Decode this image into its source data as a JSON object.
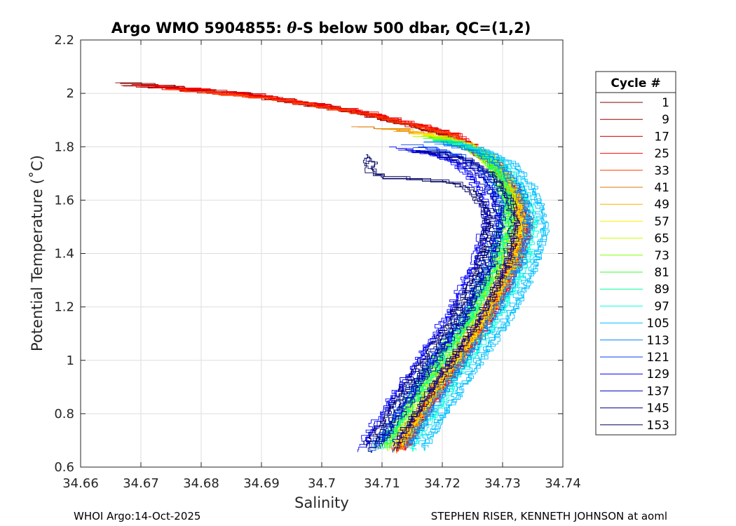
{
  "chart_data": {
    "type": "line",
    "title_prefix": "Argo WMO 5904855: ",
    "title_symbol": "θ",
    "title_suffix": "-S below 500 dbar,  QC=(1,2)",
    "xlabel": "Salinity",
    "ylabel": "Potential Temperature (˚C)",
    "xlim": [
      34.66,
      34.74
    ],
    "ylim": [
      0.6,
      2.2
    ],
    "xticks": [
      34.66,
      34.67,
      34.68,
      34.69,
      34.7,
      34.71,
      34.72,
      34.73,
      34.74
    ],
    "xtick_labels": [
      "34.66",
      "34.67",
      "34.68",
      "34.69",
      "34.7",
      "34.71",
      "34.72",
      "34.73",
      "34.74"
    ],
    "yticks": [
      0.6,
      0.8,
      1.0,
      1.2,
      1.4,
      1.6,
      1.8,
      2.0,
      2.2
    ],
    "ytick_labels": [
      "0.6",
      "0.8",
      "1",
      "1.2",
      "1.4",
      "1.6",
      "1.8",
      "2",
      "2.2"
    ],
    "grid": true,
    "legend_title": "Cycle #",
    "legend_position": "outside-right",
    "series": [
      {
        "name": "1",
        "color": "#800000",
        "profile": [
          [
            34.666,
            2.04
          ],
          [
            34.688,
            1.99
          ],
          [
            34.705,
            1.93
          ],
          [
            34.72,
            1.85
          ],
          [
            34.7285,
            1.74
          ],
          [
            34.7325,
            1.6
          ],
          [
            34.7335,
            1.5
          ],
          [
            34.7315,
            1.35
          ],
          [
            34.727,
            1.15
          ],
          [
            34.72,
            0.92
          ],
          [
            34.7125,
            0.66
          ]
        ]
      },
      {
        "name": "9",
        "color": "#A00000",
        "profile": [
          [
            34.666,
            2.03
          ],
          [
            34.688,
            1.985
          ],
          [
            34.705,
            1.925
          ],
          [
            34.72,
            1.845
          ],
          [
            34.7285,
            1.735
          ],
          [
            34.7325,
            1.595
          ],
          [
            34.7335,
            1.495
          ],
          [
            34.7315,
            1.345
          ],
          [
            34.727,
            1.145
          ],
          [
            34.72,
            0.915
          ],
          [
            34.7125,
            0.655
          ]
        ]
      },
      {
        "name": "17",
        "color": "#D00000",
        "profile": [
          [
            34.667,
            2.035
          ],
          [
            34.689,
            1.99
          ],
          [
            34.706,
            1.93
          ],
          [
            34.721,
            1.85
          ],
          [
            34.729,
            1.74
          ],
          [
            34.733,
            1.6
          ],
          [
            34.734,
            1.5
          ],
          [
            34.732,
            1.35
          ],
          [
            34.7275,
            1.15
          ],
          [
            34.7205,
            0.92
          ],
          [
            34.713,
            0.66
          ]
        ]
      },
      {
        "name": "25",
        "color": "#FF0000",
        "profile": [
          [
            34.668,
            2.03
          ],
          [
            34.69,
            1.985
          ],
          [
            34.707,
            1.925
          ],
          [
            34.722,
            1.845
          ],
          [
            34.7295,
            1.735
          ],
          [
            34.7335,
            1.595
          ],
          [
            34.7345,
            1.495
          ],
          [
            34.7325,
            1.345
          ],
          [
            34.728,
            1.145
          ],
          [
            34.721,
            0.915
          ],
          [
            34.7135,
            0.655
          ]
        ]
      },
      {
        "name": "33",
        "color": "#FF3A00",
        "profile": [
          [
            34.671,
            2.02
          ],
          [
            34.692,
            1.975
          ],
          [
            34.708,
            1.915
          ],
          [
            34.722,
            1.84
          ],
          [
            34.729,
            1.73
          ],
          [
            34.733,
            1.59
          ],
          [
            34.734,
            1.49
          ],
          [
            34.732,
            1.34
          ],
          [
            34.7275,
            1.14
          ],
          [
            34.7205,
            0.91
          ],
          [
            34.713,
            0.65
          ]
        ]
      },
      {
        "name": "41",
        "color": "#E07A00",
        "profile": [
          [
            34.705,
            1.875
          ],
          [
            34.713,
            1.86
          ],
          [
            34.72,
            1.83
          ],
          [
            34.726,
            1.78
          ],
          [
            34.73,
            1.7
          ],
          [
            34.732,
            1.6
          ],
          [
            34.7325,
            1.5
          ],
          [
            34.731,
            1.35
          ],
          [
            34.7265,
            1.15
          ],
          [
            34.7195,
            0.92
          ],
          [
            34.712,
            0.66
          ]
        ]
      },
      {
        "name": "49",
        "color": "#FFB000",
        "profile": [
          [
            34.709,
            1.865
          ],
          [
            34.716,
            1.85
          ],
          [
            34.722,
            1.82
          ],
          [
            34.727,
            1.77
          ],
          [
            34.7305,
            1.69
          ],
          [
            34.7325,
            1.595
          ],
          [
            34.733,
            1.5
          ],
          [
            34.7315,
            1.35
          ],
          [
            34.727,
            1.15
          ],
          [
            34.72,
            0.92
          ],
          [
            34.7125,
            0.66
          ]
        ]
      },
      {
        "name": "57",
        "color": "#FFEE00",
        "profile": [
          [
            34.712,
            1.855
          ],
          [
            34.718,
            1.84
          ],
          [
            34.7235,
            1.81
          ],
          [
            34.7275,
            1.76
          ],
          [
            34.7305,
            1.685
          ],
          [
            34.7325,
            1.59
          ],
          [
            34.733,
            1.5
          ],
          [
            34.7315,
            1.35
          ],
          [
            34.727,
            1.15
          ],
          [
            34.72,
            0.92
          ],
          [
            34.7125,
            0.66
          ]
        ]
      },
      {
        "name": "65",
        "color": "#C8FF00",
        "profile": [
          [
            34.714,
            1.845
          ],
          [
            34.7195,
            1.83
          ],
          [
            34.724,
            1.8
          ],
          [
            34.7275,
            1.75
          ],
          [
            34.73,
            1.68
          ],
          [
            34.7315,
            1.59
          ],
          [
            34.7315,
            1.5
          ],
          [
            34.7295,
            1.35
          ],
          [
            34.725,
            1.15
          ],
          [
            34.718,
            0.92
          ],
          [
            34.7105,
            0.66
          ]
        ]
      },
      {
        "name": "73",
        "color": "#80FF00",
        "profile": [
          [
            34.715,
            1.84
          ],
          [
            34.72,
            1.825
          ],
          [
            34.7245,
            1.795
          ],
          [
            34.7275,
            1.745
          ],
          [
            34.7295,
            1.68
          ],
          [
            34.731,
            1.59
          ],
          [
            34.731,
            1.5
          ],
          [
            34.729,
            1.35
          ],
          [
            34.7245,
            1.15
          ],
          [
            34.7175,
            0.92
          ],
          [
            34.71,
            0.66
          ]
        ]
      },
      {
        "name": "81",
        "color": "#30FF30",
        "profile": [
          [
            34.716,
            1.835
          ],
          [
            34.7205,
            1.82
          ],
          [
            34.725,
            1.79
          ],
          [
            34.728,
            1.74
          ],
          [
            34.7295,
            1.675
          ],
          [
            34.7305,
            1.59
          ],
          [
            34.7305,
            1.5
          ],
          [
            34.7285,
            1.35
          ],
          [
            34.724,
            1.15
          ],
          [
            34.717,
            0.92
          ],
          [
            34.7095,
            0.66
          ]
        ]
      },
      {
        "name": "89",
        "color": "#00FF99",
        "profile": [
          [
            34.717,
            1.83
          ],
          [
            34.721,
            1.815
          ],
          [
            34.7255,
            1.785
          ],
          [
            34.7285,
            1.735
          ],
          [
            34.73,
            1.67
          ],
          [
            34.731,
            1.59
          ],
          [
            34.731,
            1.5
          ],
          [
            34.729,
            1.35
          ],
          [
            34.7245,
            1.15
          ],
          [
            34.7175,
            0.92
          ],
          [
            34.71,
            0.66
          ]
        ]
      },
      {
        "name": "97",
        "color": "#00FFE0",
        "profile": [
          [
            34.718,
            1.825
          ],
          [
            34.7225,
            1.81
          ],
          [
            34.727,
            1.78
          ],
          [
            34.7305,
            1.73
          ],
          [
            34.733,
            1.66
          ],
          [
            34.7345,
            1.59
          ],
          [
            34.7355,
            1.5
          ],
          [
            34.734,
            1.35
          ],
          [
            34.7295,
            1.15
          ],
          [
            34.7225,
            0.92
          ],
          [
            34.715,
            0.66
          ]
        ]
      },
      {
        "name": "105",
        "color": "#00C0FF",
        "profile": [
          [
            34.719,
            1.82
          ],
          [
            34.7235,
            1.805
          ],
          [
            34.728,
            1.775
          ],
          [
            34.732,
            1.725
          ],
          [
            34.7345,
            1.655
          ],
          [
            34.736,
            1.59
          ],
          [
            34.737,
            1.5
          ],
          [
            34.7355,
            1.35
          ],
          [
            34.731,
            1.15
          ],
          [
            34.724,
            0.92
          ],
          [
            34.7165,
            0.66
          ]
        ]
      },
      {
        "name": "113",
        "color": "#0080FF",
        "profile": [
          [
            34.717,
            1.82
          ],
          [
            34.722,
            1.8
          ],
          [
            34.7265,
            1.77
          ],
          [
            34.73,
            1.72
          ],
          [
            34.7325,
            1.65
          ],
          [
            34.734,
            1.58
          ],
          [
            34.7345,
            1.5
          ],
          [
            34.733,
            1.35
          ],
          [
            34.7285,
            1.15
          ],
          [
            34.7215,
            0.92
          ],
          [
            34.714,
            0.66
          ]
        ]
      },
      {
        "name": "121",
        "color": "#0040FF",
        "profile": [
          [
            34.713,
            1.81
          ],
          [
            34.718,
            1.79
          ],
          [
            34.723,
            1.76
          ],
          [
            34.7265,
            1.71
          ],
          [
            34.7285,
            1.64
          ],
          [
            34.7295,
            1.58
          ],
          [
            34.7295,
            1.5
          ],
          [
            34.7275,
            1.35
          ],
          [
            34.723,
            1.15
          ],
          [
            34.716,
            0.92
          ],
          [
            34.7085,
            0.66
          ]
        ]
      },
      {
        "name": "129",
        "color": "#0000FF",
        "profile": [
          [
            34.711,
            1.8
          ],
          [
            34.716,
            1.78
          ],
          [
            34.721,
            1.75
          ],
          [
            34.7245,
            1.7
          ],
          [
            34.7265,
            1.63
          ],
          [
            34.7275,
            1.57
          ],
          [
            34.7275,
            1.5
          ],
          [
            34.7255,
            1.35
          ],
          [
            34.721,
            1.15
          ],
          [
            34.714,
            0.92
          ],
          [
            34.7065,
            0.66
          ]
        ]
      },
      {
        "name": "137",
        "color": "#0000C0",
        "profile": [
          [
            34.712,
            1.79
          ],
          [
            34.717,
            1.775
          ],
          [
            34.722,
            1.745
          ],
          [
            34.7255,
            1.7
          ],
          [
            34.728,
            1.63
          ],
          [
            34.729,
            1.57
          ],
          [
            34.7295,
            1.5
          ],
          [
            34.728,
            1.35
          ],
          [
            34.7235,
            1.15
          ],
          [
            34.7165,
            0.92
          ],
          [
            34.709,
            0.66
          ]
        ]
      },
      {
        "name": "145",
        "color": "#00008B",
        "profile": [
          [
            34.714,
            1.79
          ],
          [
            34.7195,
            1.775
          ],
          [
            34.7245,
            1.745
          ],
          [
            34.728,
            1.7
          ],
          [
            34.7305,
            1.63
          ],
          [
            34.732,
            1.57
          ],
          [
            34.7325,
            1.5
          ],
          [
            34.731,
            1.35
          ],
          [
            34.7265,
            1.15
          ],
          [
            34.7195,
            0.92
          ],
          [
            34.712,
            0.66
          ]
        ]
      },
      {
        "name": "153",
        "color": "#000060",
        "profile": [
          [
            34.7075,
            1.775
          ],
          [
            34.708,
            1.74
          ],
          [
            34.7085,
            1.7
          ],
          [
            34.711,
            1.68
          ],
          [
            34.7175,
            1.67
          ],
          [
            34.7225,
            1.66
          ],
          [
            34.7255,
            1.62
          ],
          [
            34.7275,
            1.56
          ],
          [
            34.728,
            1.5
          ],
          [
            34.7265,
            1.35
          ],
          [
            34.722,
            1.15
          ],
          [
            34.715,
            0.92
          ],
          [
            34.7075,
            0.66
          ]
        ]
      }
    ]
  },
  "footer": {
    "left": "WHOI Argo:14-Oct-2025",
    "right": "STEPHEN RISER, KENNETH JOHNSON at aoml"
  }
}
